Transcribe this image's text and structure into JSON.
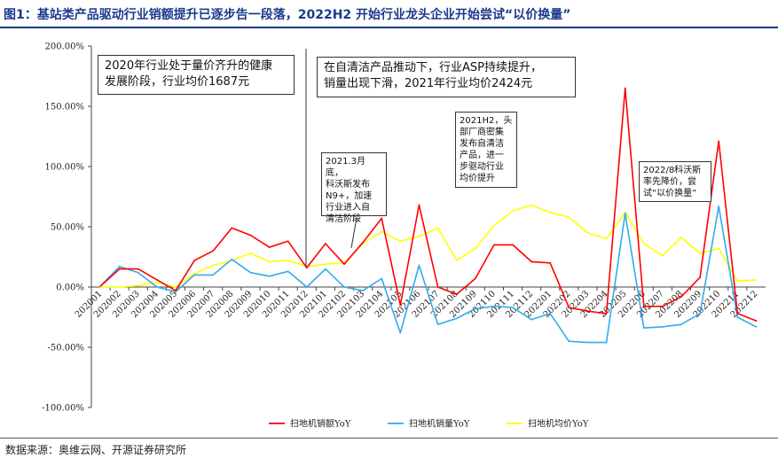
{
  "header": {
    "title": "图1：基站类产品驱动行业销额提升已逐步告一段落，2022H2 开始行业龙头企业开始尝试“以价换量”"
  },
  "footer": {
    "source": "数据来源：奥维云网、开源证券研究所"
  },
  "annotations": [
    "2020年行业处于量价齐升的健康\n发展阶段，行业均价1687元",
    "在自清洁产品推动下，行业ASP持续提升，\n销量出现下滑，2021年行业均价2424元",
    "2021.3月底，\n科沃斯发布\nN9+，加速\n行业进入自\n清洁阶段",
    "2021H2，头\n部厂商密集\n发布自清洁\n产品，进一\n步驱动行业\n均价提升",
    "2022/8科沃斯\n率先降价，尝\n试“以价换量”"
  ],
  "colors": {
    "sales_amount": "#ff0000",
    "sales_volume": "#33aaee",
    "avg_price": "#ffff00"
  },
  "chart_data": {
    "type": "line",
    "title": "",
    "xlabel": "",
    "ylabel": "",
    "ylim": [
      -1.0,
      2.0
    ],
    "yticks": [
      "200.00%",
      "150.00%",
      "100.00%",
      "50.00%",
      "0.00%",
      "-50.00%",
      "-100.00%"
    ],
    "grid": false,
    "legend_position": "bottom",
    "categories": [
      "202001",
      "202002",
      "202003",
      "202004",
      "202005",
      "202006",
      "202007",
      "202008",
      "202009",
      "202010",
      "202011",
      "202012",
      "202101",
      "202102",
      "202103",
      "202104",
      "202105",
      "202106",
      "202107",
      "202108",
      "202109",
      "202110",
      "202111",
      "202112",
      "202201",
      "202202",
      "202203",
      "202204",
      "202205",
      "202206",
      "202207",
      "202208",
      "202209",
      "202210",
      "202211",
      "202212"
    ],
    "series": [
      {
        "name": "扫地机销额YoY",
        "color": "#ff0000",
        "values": [
          0.01,
          0.15,
          0.15,
          0.06,
          -0.03,
          0.22,
          0.3,
          0.49,
          0.43,
          0.33,
          0.38,
          0.16,
          0.36,
          0.19,
          0.37,
          0.57,
          -0.15,
          0.68,
          0.0,
          -0.06,
          0.07,
          0.35,
          0.35,
          0.21,
          0.2,
          -0.17,
          -0.2,
          -0.22,
          1.65,
          -0.16,
          -0.16,
          -0.08,
          0.08,
          1.21,
          -0.22,
          -0.28
        ]
      },
      {
        "name": "扫地机销量YoY",
        "color": "#33aaee",
        "values": [
          0.01,
          0.17,
          0.12,
          0.0,
          -0.04,
          0.1,
          0.1,
          0.23,
          0.12,
          0.09,
          0.13,
          0.0,
          0.15,
          0.0,
          -0.03,
          0.07,
          -0.38,
          0.18,
          -0.31,
          -0.26,
          -0.18,
          -0.16,
          -0.17,
          -0.27,
          -0.22,
          -0.45,
          -0.46,
          -0.46,
          0.61,
          -0.34,
          -0.33,
          -0.31,
          -0.22,
          0.67,
          -0.25,
          -0.33
        ]
      },
      {
        "name": "扫地机均价YoY",
        "color": "#ffff00",
        "values": [
          0.0,
          0.0,
          0.01,
          0.04,
          0.0,
          0.11,
          0.18,
          0.22,
          0.28,
          0.21,
          0.22,
          0.17,
          0.19,
          0.2,
          0.36,
          0.46,
          0.38,
          0.42,
          0.49,
          0.22,
          0.32,
          0.51,
          0.63,
          0.68,
          0.62,
          0.58,
          0.45,
          0.4,
          0.62,
          0.36,
          0.26,
          0.41,
          0.28,
          0.32,
          0.05,
          0.06
        ]
      }
    ]
  }
}
